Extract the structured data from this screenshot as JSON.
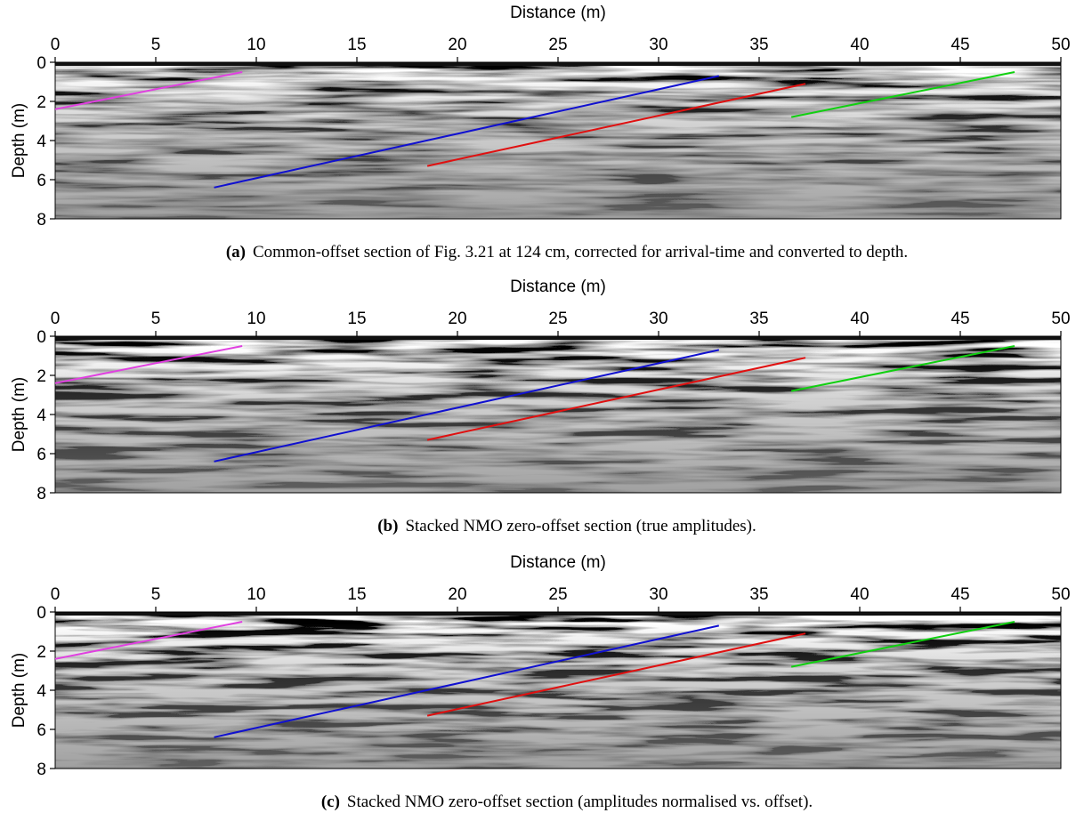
{
  "chart_data": [
    {
      "type": "line",
      "x_label": "Distance (m)",
      "y_label": "Depth (m)",
      "caption_label": "(a)",
      "caption": "Common-offset section of Fig. 3.21 at 124 cm, corrected for arrival-time and converted to depth.",
      "xlim": [
        0,
        50
      ],
      "xticks": [
        0,
        5,
        10,
        15,
        20,
        25,
        30,
        35,
        40,
        45,
        50
      ],
      "ylim": [
        8,
        0
      ],
      "yticks": [
        0,
        2,
        4,
        6,
        8
      ],
      "series": [
        {
          "color": "#e040e0",
          "x": [
            0,
            9.3
          ],
          "values": [
            2.4,
            0.5
          ]
        },
        {
          "color": "#1010d0",
          "x": [
            7.9,
            33
          ],
          "values": [
            6.4,
            0.7
          ]
        },
        {
          "color": "#e01010",
          "x": [
            18.5,
            37.3
          ],
          "values": [
            5.3,
            1.1
          ]
        },
        {
          "color": "#10d010",
          "x": [
            36.6,
            47.7
          ],
          "values": [
            2.8,
            0.5
          ]
        }
      ]
    },
    {
      "type": "line",
      "x_label": "Distance (m)",
      "y_label": "Depth (m)",
      "caption_label": "(b)",
      "caption": "Stacked NMO zero-offset section (true amplitudes).",
      "xlim": [
        0,
        50
      ],
      "xticks": [
        0,
        5,
        10,
        15,
        20,
        25,
        30,
        35,
        40,
        45,
        50
      ],
      "ylim": [
        8,
        0
      ],
      "yticks": [
        0,
        2,
        4,
        6,
        8
      ],
      "series": [
        {
          "color": "#e040e0",
          "x": [
            0,
            9.3
          ],
          "values": [
            2.4,
            0.5
          ]
        },
        {
          "color": "#1010d0",
          "x": [
            7.9,
            33
          ],
          "values": [
            6.4,
            0.7
          ]
        },
        {
          "color": "#e01010",
          "x": [
            18.5,
            37.3
          ],
          "values": [
            5.3,
            1.1
          ]
        },
        {
          "color": "#10d010",
          "x": [
            36.6,
            47.7
          ],
          "values": [
            2.8,
            0.5
          ]
        }
      ]
    },
    {
      "type": "line",
      "x_label": "Distance (m)",
      "y_label": "Depth (m)",
      "caption_label": "(c)",
      "caption": "Stacked NMO zero-offset section (amplitudes normalised vs. offset).",
      "xlim": [
        0,
        50
      ],
      "xticks": [
        0,
        5,
        10,
        15,
        20,
        25,
        30,
        35,
        40,
        45,
        50
      ],
      "ylim": [
        8,
        0
      ],
      "yticks": [
        0,
        2,
        4,
        6,
        8
      ],
      "series": [
        {
          "color": "#e040e0",
          "x": [
            0,
            9.3
          ],
          "values": [
            2.4,
            0.5
          ]
        },
        {
          "color": "#1010d0",
          "x": [
            7.9,
            33
          ],
          "values": [
            6.4,
            0.7
          ]
        },
        {
          "color": "#e01010",
          "x": [
            18.5,
            37.3
          ],
          "values": [
            5.3,
            1.1
          ]
        },
        {
          "color": "#10d010",
          "x": [
            36.6,
            47.7
          ],
          "values": [
            2.8,
            0.5
          ]
        }
      ]
    }
  ]
}
